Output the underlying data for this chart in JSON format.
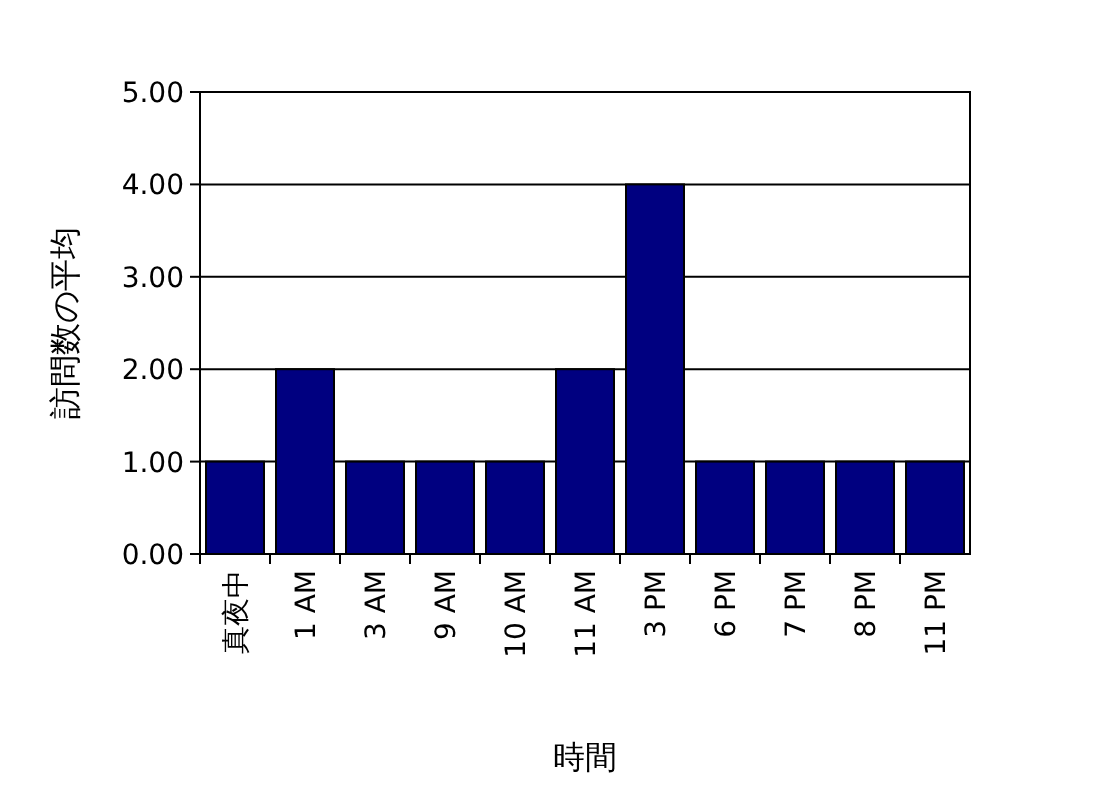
{
  "chart_data": {
    "type": "bar",
    "xlabel": "時間",
    "ylabel": "訪問数の平均",
    "categories": [
      "真夜中",
      "1 AM",
      "3 AM",
      "9 AM",
      "10 AM",
      "11 AM",
      "3 PM",
      "6 PM",
      "7 PM",
      "8 PM",
      "11 PM"
    ],
    "values": [
      1,
      2,
      1,
      1,
      1,
      2,
      4,
      1,
      1,
      1,
      1
    ],
    "color": "#000080",
    "ylim": [
      0,
      5
    ],
    "yticks": [
      {
        "value": 0,
        "label": "0.00"
      },
      {
        "value": 1,
        "label": "1.00"
      },
      {
        "value": 2,
        "label": "2.00"
      },
      {
        "value": 3,
        "label": "3.00"
      },
      {
        "value": 4,
        "label": "4.00"
      },
      {
        "value": 5,
        "label": "5.00"
      }
    ],
    "grid": "y"
  }
}
